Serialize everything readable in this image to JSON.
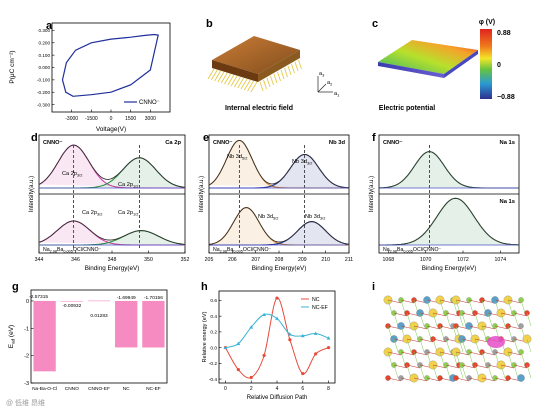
{
  "panel_letters": {
    "a": "a",
    "b": "b",
    "c": "c",
    "d": "d",
    "e": "e",
    "f": "f",
    "g": "g",
    "h": "h",
    "i": "i"
  },
  "panel_b": {
    "caption": "Internal electric field",
    "axes": {
      "a1": "a",
      "a1_sub": "1",
      "a2": "a",
      "a2_sub": "2",
      "a3": "a",
      "a3_sub": "3"
    }
  },
  "panel_c": {
    "caption": "Electric potential",
    "colorbar": {
      "title": "φ (V)",
      "max": "0.88",
      "mid": "0",
      "min": "−0.88",
      "colors": [
        "#e0231f",
        "#f07b1c",
        "#f3e628",
        "#65c241",
        "#2b9ad2",
        "#2d2f8f"
      ]
    }
  },
  "watermark": "@ 低维 昂维",
  "colors": {
    "magenta": "#d43aa8",
    "green": "#2b8a3e",
    "orange": "#d4801f",
    "navy": "#1c2a8c",
    "blue_line": "#1f2f9c",
    "pink_bar": "#f58bc0",
    "red": "#e74c3c",
    "cyan": "#3bb3d6"
  },
  "chart_data": [
    {
      "id": "a",
      "type": "line",
      "xlabel": "Voltage(V)",
      "ylabel": "P(μC cm⁻²)",
      "xlim": [
        -4500,
        4500
      ],
      "ylim": [
        -0.36,
        0.36
      ],
      "xticks": [
        -3000,
        -1500,
        0,
        1500,
        3000
      ],
      "xtick_labels": [
        "-3000",
        "-1500",
        "0",
        "1500",
        "3000"
      ],
      "yticks": [
        -0.3,
        -0.2,
        -0.1,
        0.0,
        0.1,
        0.2,
        0.3
      ],
      "ytick_labels": [
        "-0.300",
        "-0.200",
        "-0.100",
        "0.000",
        "0.100",
        "0.200",
        "0.300"
      ],
      "series": [
        {
          "name": "CNNO⁻",
          "x": [
            3600,
            3300,
            2600,
            1500,
            0,
            -1500,
            -2700,
            -3400,
            -3700,
            -3450,
            -2900,
            -1500,
            0,
            1500,
            3000,
            3600
          ],
          "y": [
            0.262,
            0.267,
            0.26,
            0.245,
            0.23,
            0.2,
            0.14,
            0.04,
            -0.1,
            -0.2,
            -0.233,
            -0.22,
            -0.2,
            -0.14,
            -0.02,
            0.262
          ]
        }
      ]
    },
    {
      "id": "d",
      "type": "line",
      "xlabel": "Binding Energy(eV)",
      "ylabel": "Intensity(a.u.)",
      "xlim": [
        344,
        352
      ],
      "xticks": [
        344,
        346,
        348,
        350,
        352
      ],
      "top_label": "CNNO⁻",
      "top_element": "Ca 2p",
      "bottom_label": "Na",
      "bottom_label_sub1": "2.98",
      "bottom_label_mid": "Ba",
      "bottom_label_sub2": "0.005",
      "bottom_label_tail": "OCl/CNNO⁻",
      "annotations": {
        "top_left": "Ca 2p",
        "top_left_sub": "3/2",
        "top_right": "Ca 2p",
        "top_right_sub": "1/2",
        "bottom_left": "Ca 2p",
        "bottom_left_sub": "3/2",
        "bottom_right": "Ca 2p",
        "bottom_right_sub": "1/2"
      },
      "dashed_x": [
        345.9,
        349.5
      ],
      "peaks_top": [
        {
          "center": 345.9,
          "height": 0.78,
          "width": 0.85,
          "name": "Ca 2p3/2"
        },
        {
          "center": 349.5,
          "height": 0.55,
          "width": 0.9,
          "name": "Ca 2p1/2"
        }
      ],
      "peaks_bottom": [
        {
          "center": 345.9,
          "height": 0.5,
          "width": 0.9,
          "name": "Ca 2p3/2"
        },
        {
          "center": 349.6,
          "height": 0.3,
          "width": 0.95,
          "name": "Ca 2p1/2"
        }
      ]
    },
    {
      "id": "e",
      "type": "line",
      "xlabel": "Binding Energy(eV)",
      "ylabel": "Intensity(a.u.)",
      "xlim": [
        205,
        211
      ],
      "xticks": [
        205,
        206,
        207,
        208,
        209,
        210,
        211
      ],
      "top_label": "CNNO⁻",
      "top_element": "Nb 3d",
      "bottom_label": "Na",
      "bottom_label_sub1": "2.98",
      "bottom_label_mid": "Ba",
      "bottom_label_sub2": "0.005",
      "bottom_label_tail": "OCl/CNNO⁻",
      "annotations": {
        "top_left": "Nb 3d",
        "top_left_sub": "5/2",
        "top_right": "Nb 3d",
        "top_right_sub": "3/2",
        "bottom_left": "Nb 3d",
        "bottom_left_sub": "5/2",
        "bottom_right": "Nb 3d",
        "bottom_right_sub": "3/2"
      },
      "dashed_x": [
        206.3,
        209.1
      ],
      "peaks_top": [
        {
          "center": 206.3,
          "height": 0.85,
          "width": 0.55,
          "name": "Nb 3d5/2"
        },
        {
          "center": 209.1,
          "height": 0.6,
          "width": 0.6,
          "name": "Nb 3d3/2"
        }
      ],
      "peaks_bottom": [
        {
          "center": 206.6,
          "height": 0.72,
          "width": 0.55,
          "name": "Nb 3d5/2"
        },
        {
          "center": 209.4,
          "height": 0.45,
          "width": 0.6,
          "name": "Nb 3d3/2"
        }
      ]
    },
    {
      "id": "f",
      "type": "line",
      "xlabel": "Binding Energy(eV)",
      "ylabel": "Intensity(a.u.)",
      "xlim": [
        1067.5,
        1075
      ],
      "xticks": [
        1068,
        1070,
        1072,
        1074
      ],
      "top_label": "CNNO⁻",
      "top_element": "Na 1s",
      "bottom_label": "Na",
      "bottom_label_sub1": "2.98",
      "bottom_label_mid": "Ba",
      "bottom_label_sub2": "0.005",
      "bottom_label_tail": "OCl/CNNO⁻",
      "bottom_element": "Na 1s",
      "dashed_x": [
        1070.2
      ],
      "peaks_top": [
        {
          "center": 1070.2,
          "height": 0.7,
          "width": 0.8,
          "name": "Na 1s"
        }
      ],
      "peaks_bottom": [
        {
          "center": 1071.6,
          "height": 0.85,
          "width": 1.0,
          "name": "Na 1s"
        }
      ]
    },
    {
      "id": "g",
      "type": "bar",
      "ylabel": "E",
      "ylabel_sub": "ad",
      "ylabel_tail": " (eV)",
      "categories": [
        "Na-Ba-O-Cl",
        "CNNO",
        "CNNO-EF",
        "NC",
        "NC-EF"
      ],
      "values": [
        -2.57315,
        -0.00932,
        0.01283,
        -1.69949,
        -1.70156
      ],
      "value_labels": [
        "-2.57315",
        "-0.00932",
        "0.01283",
        "-1.69949",
        "-1.70156"
      ],
      "ylim": [
        -3,
        0.4
      ],
      "yticks": [
        -3,
        -2,
        -1,
        0
      ],
      "ytick_labels": [
        "-3",
        "-2",
        "-1",
        "0"
      ]
    },
    {
      "id": "h",
      "type": "line",
      "xlabel": "Relative Diffusion Path",
      "ylabel": "Relative energy (eV)",
      "xlim": [
        -0.5,
        8.5
      ],
      "ylim": [
        -0.45,
        0.72
      ],
      "xticks": [
        0,
        2,
        4,
        6,
        8
      ],
      "xtick_labels": [
        "0",
        "2",
        "4",
        "6",
        "8"
      ],
      "yticks": [
        -0.4,
        -0.2,
        0.0,
        0.2,
        0.4,
        0.6
      ],
      "ytick_labels": [
        "-0.4",
        "-0.2",
        "0.0",
        "0.2",
        "0.4",
        "0.6"
      ],
      "series": [
        {
          "name": "NC",
          "x": [
            0,
            1,
            2,
            3,
            4,
            5,
            6,
            7,
            8
          ],
          "y": [
            0.0,
            -0.28,
            -0.38,
            -0.1,
            0.63,
            0.1,
            -0.33,
            -0.08,
            0.0
          ]
        },
        {
          "name": "NC-EF",
          "x": [
            0,
            1,
            2,
            3,
            4,
            5,
            6,
            7,
            8
          ],
          "y": [
            0.0,
            0.05,
            0.26,
            0.42,
            0.37,
            0.17,
            0.15,
            0.18,
            0.12
          ]
        }
      ]
    }
  ]
}
